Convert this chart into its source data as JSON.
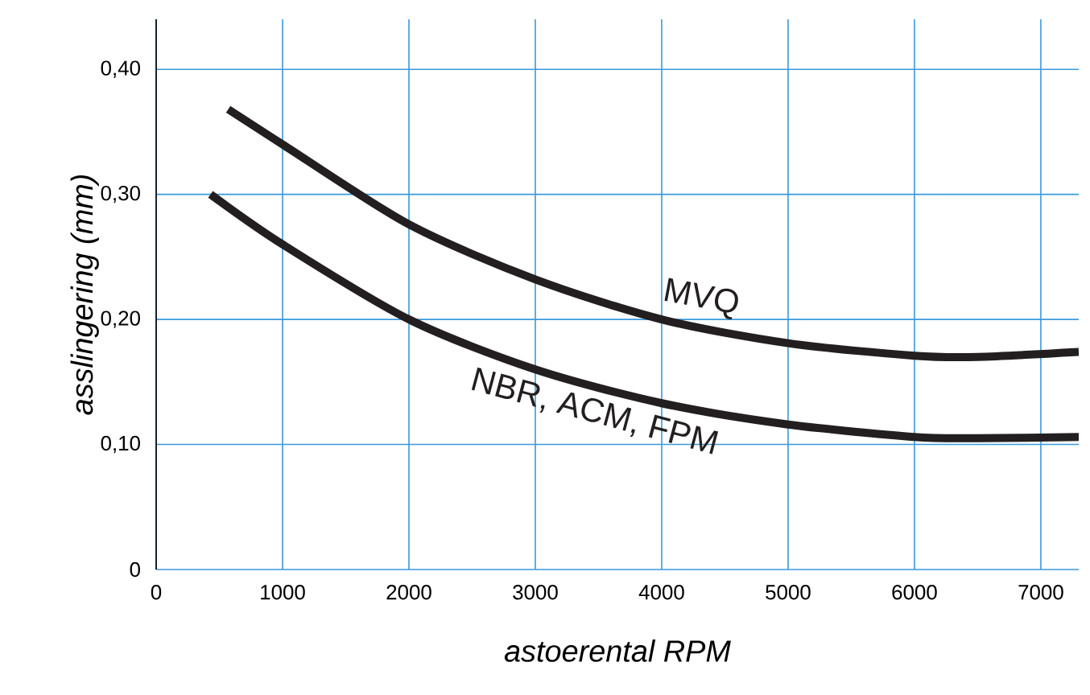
{
  "chart_data": {
    "type": "line",
    "xlabel": "astoerental RPM",
    "ylabel": "asslingering (mm)",
    "xlim": [
      0,
      7300
    ],
    "ylim": [
      0,
      0.44
    ],
    "xticks": [
      0,
      1000,
      2000,
      3000,
      4000,
      5000,
      6000,
      7000
    ],
    "yticks": [
      {
        "value": 0,
        "label": "0"
      },
      {
        "value": 0.1,
        "label": "0,10"
      },
      {
        "value": 0.2,
        "label": "0,20"
      },
      {
        "value": 0.3,
        "label": "0,30"
      },
      {
        "value": 0.4,
        "label": "0,40"
      }
    ],
    "grid": true,
    "series": [
      {
        "name": "MVQ",
        "color": "#231f20",
        "x": [
          570,
          1000,
          2000,
          3000,
          4000,
          5000,
          6000,
          6500,
          7300
        ],
        "values": [
          0.368,
          0.34,
          0.276,
          0.232,
          0.2,
          0.181,
          0.171,
          0.17,
          0.174
        ]
      },
      {
        "name": "NBR, ACM, FPM",
        "color": "#231f20",
        "x": [
          430,
          1000,
          2000,
          3000,
          4000,
          5000,
          6000,
          6500,
          7300
        ],
        "values": [
          0.3,
          0.26,
          0.2,
          0.16,
          0.133,
          0.116,
          0.106,
          0.105,
          0.106
        ]
      }
    ]
  }
}
